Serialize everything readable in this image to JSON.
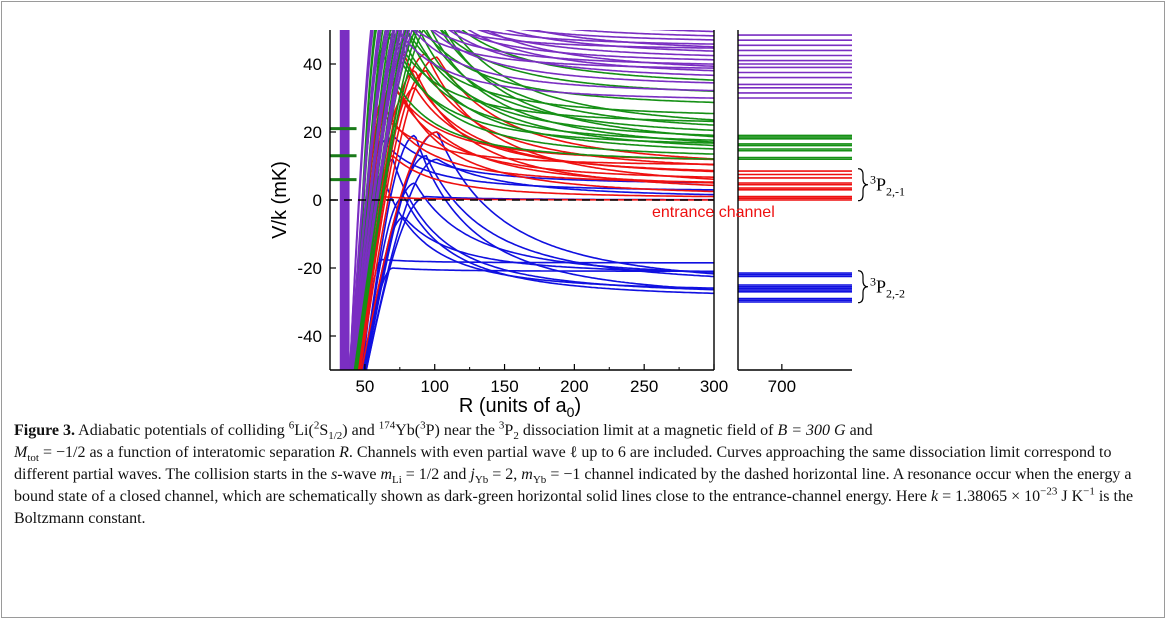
{
  "chart_data": {
    "type": "line",
    "ylabel": "V/k (mK)",
    "xlabel": "R (units of a",
    "xlabel_sub": "0",
    "xlabel_close": ")",
    "ylim": [
      -50,
      50
    ],
    "left_panel_xlim": [
      25,
      300
    ],
    "right_panel_xlim": [
      600,
      860
    ],
    "grid": false,
    "yticks": [
      -40,
      -20,
      0,
      20,
      40
    ],
    "left_xticks": [
      50,
      100,
      150,
      200,
      250,
      300
    ],
    "right_xticks": [
      700
    ],
    "entrance_channel_energy": 0,
    "entrance_label": "entrance channel",
    "series_colors": {
      "blue": "#1010e0",
      "red": "#ee1010",
      "green": "#159015",
      "purple": "#7a2ec2",
      "dark_green": "#1a7a1a"
    },
    "series": [
      {
        "color": "blue",
        "asymptotes": [
          -18.5,
          -21,
          -22,
          -23,
          -25.5,
          -26,
          -27,
          -28,
          -29,
          -29.5,
          0,
          0.5,
          2.5,
          4.5
        ],
        "barriers": [
          -19,
          -20,
          -5,
          5,
          13,
          20,
          8,
          12,
          1,
          19,
          0,
          12,
          18,
          19
        ]
      },
      {
        "color": "red",
        "asymptotes": [
          0,
          0.5,
          1,
          2,
          3,
          3.5,
          4.5,
          5.5,
          6.5,
          7,
          8,
          9,
          10,
          11
        ],
        "barriers": [
          0,
          13,
          30,
          38,
          43,
          20,
          29,
          35,
          43,
          33,
          38,
          42,
          26,
          34
        ]
      },
      {
        "color": "green",
        "asymptotes": [
          11,
          12,
          13,
          13.5,
          14,
          15,
          15.5,
          16,
          17,
          18,
          19,
          20,
          22,
          24,
          27,
          30,
          33
        ],
        "barriers": [
          44,
          49,
          52,
          53,
          53,
          54,
          55,
          55,
          56,
          57,
          58,
          58,
          58,
          59,
          60,
          61,
          62
        ]
      },
      {
        "color": "purple",
        "asymptotes": [
          29,
          31,
          33,
          35,
          36,
          37,
          38,
          39,
          40,
          41,
          42,
          43,
          44,
          45,
          46,
          47,
          48,
          49
        ],
        "barriers": [
          60,
          60,
          61,
          61,
          62,
          62,
          63,
          63,
          64,
          64,
          65,
          65,
          66,
          66,
          67,
          67,
          68,
          68
        ]
      }
    ],
    "right_panel_levels": {
      "blue": [
        -21.5,
        -22,
        -22.5,
        -25,
        -25.5,
        -26,
        -26.5,
        -27,
        -29,
        -29.5,
        -30
      ],
      "red": [
        0,
        0.5,
        1,
        3,
        3.5,
        4.5,
        5,
        6.5,
        7.5,
        8.5
      ],
      "green": [
        12,
        12.5,
        14.5,
        15,
        16,
        16.5,
        18,
        18.5,
        19
      ],
      "purple": [
        30,
        31.5,
        33,
        34,
        36,
        37.5,
        39,
        40,
        41,
        42.5,
        44,
        45.5,
        47,
        48.5
      ]
    },
    "bound_states": [
      6,
      13,
      21
    ],
    "threshold_labels": [
      {
        "term": "P",
        "sup": "3",
        "sub": "2,-1",
        "y": 4.5
      },
      {
        "term": "P",
        "sup": "3",
        "sub": "2,-2",
        "y": -25.5
      }
    ]
  },
  "caption": {
    "label": "Figure 3.",
    "part1": " Adiabatic potentials of colliding ",
    "li_mass": "6",
    "li_sym": "Li(",
    "li_term_sup": "2",
    "li_term": "S",
    "li_term_sub": "1/2",
    "li_close": ")",
    "and": " and ",
    "yb_mass": "174",
    "yb_sym": "Yb(",
    "yb_term_sup": "3",
    "yb_term": "P)",
    "part2": " near the ",
    "p2_sup": "3",
    "p2_term": "P",
    "p2_sub": "2",
    "part3": " dissociation limit at a magnetic field of ",
    "field": "B = 300 G",
    "part4": " and",
    "mtot_sym": "M",
    "mtot_sub": "tot",
    "mtot_val": " = −1/2",
    "part5": " as a function of interatomic separation ",
    "r_sym": "R",
    "part6": ". Channels with even partial wave ℓ up to 6 are included. Curves approaching the same dissociation limit correspond to different partial waves. The collision starts in the ",
    "s_sym": "s",
    "part7": "-wave ",
    "mli_sym": "m",
    "mli_sub": "Li",
    "mli_val": " = 1/2",
    "part8": " and ",
    "jyb_sym": "j",
    "jyb_sub": "Yb",
    "jyb_val": " = 2, ",
    "myb_sym": "m",
    "myb_sub": "Yb",
    "myb_val": " = −1",
    "part9": " channel indicated by the dashed horizontal line. A resonance occur when the energy a bound state of a closed channel, which are schematically shown as dark-green horizontal solid lines close to the entrance-channel energy. Here ",
    "k_sym": "k",
    "k_val": " = 1.38065 × 10",
    "k_exp": "−23",
    "k_unit": " J K",
    "k_unit_exp": "−1",
    "part10": " is the Boltzmann constant."
  }
}
